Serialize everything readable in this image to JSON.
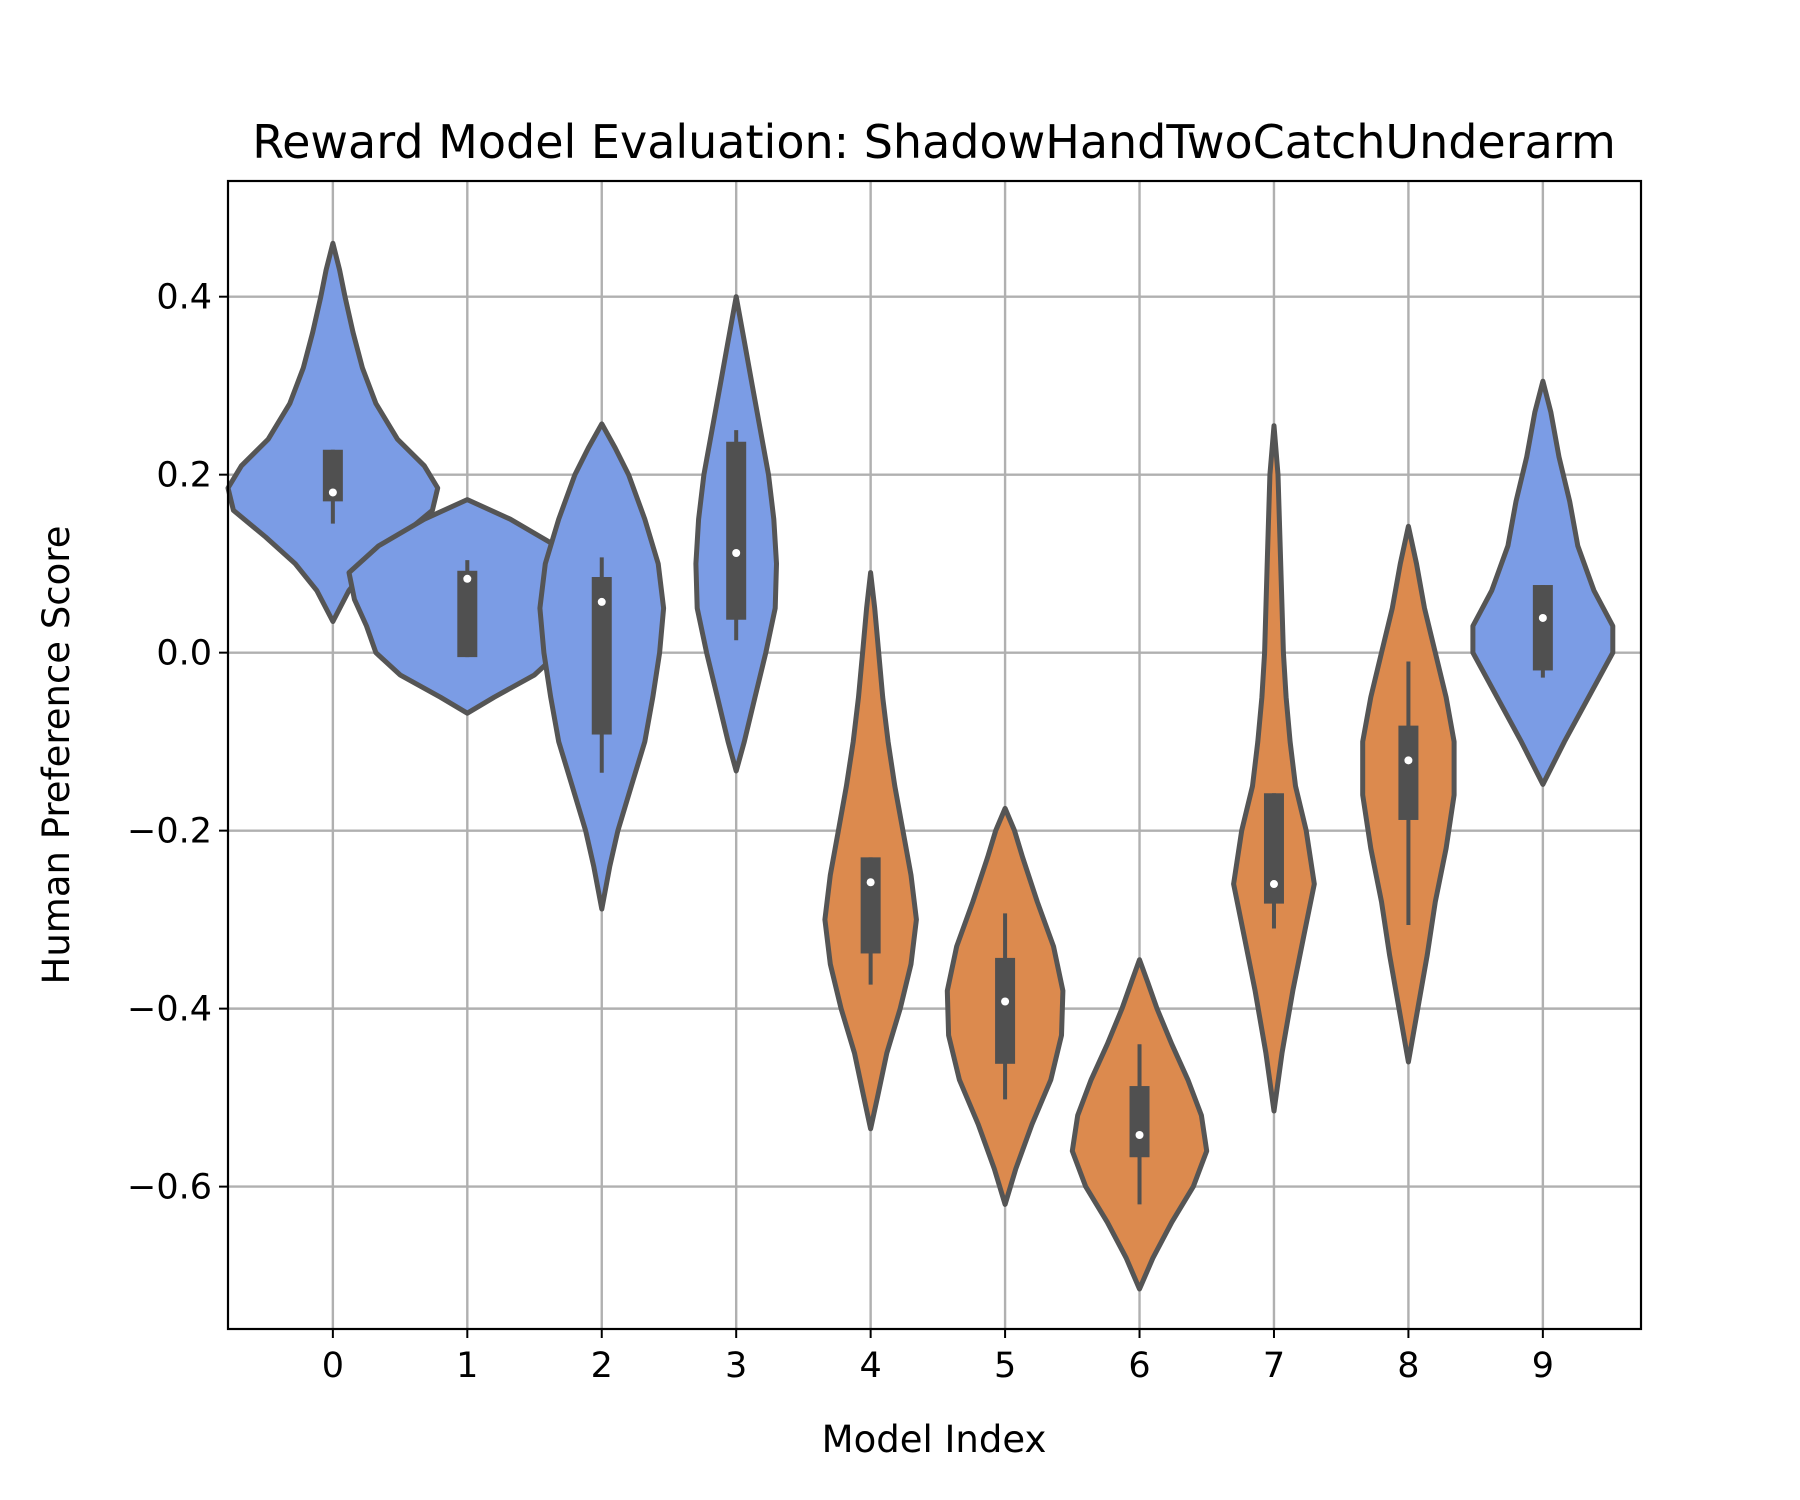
{
  "chart_data": {
    "type": "violin",
    "title": "Reward Model Evaluation: ShadowHandTwoCatchUnderarm",
    "xlabel": "Model Index",
    "ylabel": "Human Preference Score",
    "ylim": [
      -0.76,
      0.53
    ],
    "xlim": [
      -0.78,
      9.73
    ],
    "yticks": [
      0.4,
      0.2,
      0.0,
      -0.2,
      -0.4,
      -0.6
    ],
    "ytick_labels": [
      "0.4",
      "0.2",
      "0.0",
      "−0.2",
      "−0.4",
      "−0.6"
    ],
    "grid": true,
    "colors": {
      "blue": "#7b9ce5",
      "orange": "#dc8a4e",
      "outline": "#555555",
      "box": "#505050"
    },
    "series": [
      {
        "category": "0",
        "color": "blue",
        "min": 0.035,
        "max": 0.46,
        "q1": 0.17,
        "q3": 0.228,
        "median": 0.18,
        "whisker_low": 0.145,
        "whisker_high": 0.228,
        "profile": [
          [
            0.035,
            0.0
          ],
          [
            0.07,
            0.12
          ],
          [
            0.1,
            0.28
          ],
          [
            0.13,
            0.5
          ],
          [
            0.16,
            0.74
          ],
          [
            0.185,
            0.78
          ],
          [
            0.21,
            0.68
          ],
          [
            0.24,
            0.48
          ],
          [
            0.28,
            0.32
          ],
          [
            0.32,
            0.22
          ],
          [
            0.36,
            0.15
          ],
          [
            0.4,
            0.09
          ],
          [
            0.43,
            0.05
          ],
          [
            0.46,
            0.0
          ]
        ]
      },
      {
        "category": "1",
        "color": "blue",
        "min": -0.068,
        "max": 0.172,
        "q1": -0.005,
        "q3": 0.092,
        "median": 0.083,
        "whisker_low": -0.005,
        "whisker_high": 0.104,
        "profile": [
          [
            -0.068,
            0.0
          ],
          [
            -0.05,
            0.2
          ],
          [
            -0.025,
            0.5
          ],
          [
            0.0,
            0.68
          ],
          [
            0.03,
            0.75
          ],
          [
            0.06,
            0.84
          ],
          [
            0.09,
            0.88
          ],
          [
            0.12,
            0.66
          ],
          [
            0.15,
            0.32
          ],
          [
            0.172,
            0.0
          ]
        ]
      },
      {
        "category": "2",
        "color": "blue",
        "min": -0.288,
        "max": 0.257,
        "q1": -0.092,
        "q3": 0.085,
        "median": 0.057,
        "whisker_low": -0.135,
        "whisker_high": 0.107,
        "profile": [
          [
            -0.288,
            0.0
          ],
          [
            -0.24,
            0.06
          ],
          [
            -0.2,
            0.12
          ],
          [
            -0.15,
            0.22
          ],
          [
            -0.1,
            0.32
          ],
          [
            -0.05,
            0.38
          ],
          [
            0.0,
            0.43
          ],
          [
            0.05,
            0.46
          ],
          [
            0.1,
            0.42
          ],
          [
            0.15,
            0.32
          ],
          [
            0.2,
            0.2
          ],
          [
            0.23,
            0.1
          ],
          [
            0.257,
            0.0
          ]
        ]
      },
      {
        "category": "3",
        "color": "blue",
        "min": -0.133,
        "max": 0.4,
        "q1": 0.037,
        "q3": 0.237,
        "median": 0.112,
        "whisker_low": 0.014,
        "whisker_high": 0.25,
        "profile": [
          [
            -0.133,
            0.0
          ],
          [
            -0.1,
            0.06
          ],
          [
            -0.05,
            0.14
          ],
          [
            0.0,
            0.22
          ],
          [
            0.05,
            0.29
          ],
          [
            0.1,
            0.3
          ],
          [
            0.15,
            0.28
          ],
          [
            0.2,
            0.24
          ],
          [
            0.25,
            0.18
          ],
          [
            0.3,
            0.12
          ],
          [
            0.35,
            0.06
          ],
          [
            0.4,
            0.0
          ]
        ]
      },
      {
        "category": "4",
        "color": "orange",
        "min": -0.535,
        "max": 0.09,
        "q1": -0.338,
        "q3": -0.23,
        "median": -0.258,
        "whisker_low": -0.373,
        "whisker_high": -0.23,
        "profile": [
          [
            -0.535,
            0.0
          ],
          [
            -0.5,
            0.05
          ],
          [
            -0.45,
            0.12
          ],
          [
            -0.4,
            0.22
          ],
          [
            -0.35,
            0.3
          ],
          [
            -0.3,
            0.34
          ],
          [
            -0.25,
            0.3
          ],
          [
            -0.2,
            0.24
          ],
          [
            -0.15,
            0.18
          ],
          [
            -0.1,
            0.13
          ],
          [
            -0.05,
            0.09
          ],
          [
            0.0,
            0.06
          ],
          [
            0.05,
            0.03
          ],
          [
            0.09,
            0.0
          ]
        ]
      },
      {
        "category": "5",
        "color": "orange",
        "min": -0.62,
        "max": -0.175,
        "q1": -0.462,
        "q3": -0.343,
        "median": -0.392,
        "whisker_low": -0.502,
        "whisker_high": -0.293,
        "profile": [
          [
            -0.62,
            0.0
          ],
          [
            -0.58,
            0.08
          ],
          [
            -0.53,
            0.2
          ],
          [
            -0.48,
            0.34
          ],
          [
            -0.43,
            0.42
          ],
          [
            -0.38,
            0.43
          ],
          [
            -0.33,
            0.36
          ],
          [
            -0.28,
            0.24
          ],
          [
            -0.23,
            0.13
          ],
          [
            -0.2,
            0.07
          ],
          [
            -0.175,
            0.0
          ]
        ]
      },
      {
        "category": "6",
        "color": "orange",
        "min": -0.715,
        "max": -0.345,
        "q1": -0.567,
        "q3": -0.487,
        "median": -0.542,
        "whisker_low": -0.62,
        "whisker_high": -0.44,
        "profile": [
          [
            -0.715,
            0.0
          ],
          [
            -0.68,
            0.1
          ],
          [
            -0.64,
            0.24
          ],
          [
            -0.6,
            0.4
          ],
          [
            -0.56,
            0.5
          ],
          [
            -0.52,
            0.46
          ],
          [
            -0.48,
            0.36
          ],
          [
            -0.44,
            0.24
          ],
          [
            -0.4,
            0.13
          ],
          [
            -0.37,
            0.06
          ],
          [
            -0.345,
            0.0
          ]
        ]
      },
      {
        "category": "7",
        "color": "orange",
        "min": -0.515,
        "max": 0.255,
        "q1": -0.282,
        "q3": -0.158,
        "median": -0.26,
        "whisker_low": -0.31,
        "whisker_high": -0.158,
        "profile": [
          [
            -0.515,
            0.0
          ],
          [
            -0.45,
            0.06
          ],
          [
            -0.38,
            0.14
          ],
          [
            -0.32,
            0.22
          ],
          [
            -0.26,
            0.3
          ],
          [
            -0.2,
            0.24
          ],
          [
            -0.15,
            0.16
          ],
          [
            -0.1,
            0.12
          ],
          [
            -0.05,
            0.09
          ],
          [
            0.0,
            0.07
          ],
          [
            0.1,
            0.05
          ],
          [
            0.2,
            0.03
          ],
          [
            0.255,
            0.0
          ]
        ]
      },
      {
        "category": "8",
        "color": "orange",
        "min": -0.46,
        "max": 0.142,
        "q1": -0.188,
        "q3": -0.082,
        "median": -0.121,
        "whisker_low": -0.306,
        "whisker_high": -0.01,
        "profile": [
          [
            -0.46,
            0.0
          ],
          [
            -0.4,
            0.07
          ],
          [
            -0.34,
            0.14
          ],
          [
            -0.28,
            0.2
          ],
          [
            -0.22,
            0.28
          ],
          [
            -0.16,
            0.34
          ],
          [
            -0.1,
            0.34
          ],
          [
            -0.05,
            0.28
          ],
          [
            0.0,
            0.2
          ],
          [
            0.05,
            0.12
          ],
          [
            0.1,
            0.06
          ],
          [
            0.142,
            0.0
          ]
        ]
      },
      {
        "category": "9",
        "color": "blue",
        "min": -0.148,
        "max": 0.305,
        "q1": -0.02,
        "q3": 0.076,
        "median": 0.039,
        "whisker_low": -0.028,
        "whisker_high": 0.076,
        "profile": [
          [
            -0.148,
            0.0
          ],
          [
            -0.1,
            0.16
          ],
          [
            -0.05,
            0.34
          ],
          [
            0.0,
            0.52
          ],
          [
            0.03,
            0.52
          ],
          [
            0.07,
            0.38
          ],
          [
            0.12,
            0.26
          ],
          [
            0.17,
            0.2
          ],
          [
            0.22,
            0.12
          ],
          [
            0.27,
            0.06
          ],
          [
            0.305,
            0.0
          ]
        ]
      }
    ]
  }
}
